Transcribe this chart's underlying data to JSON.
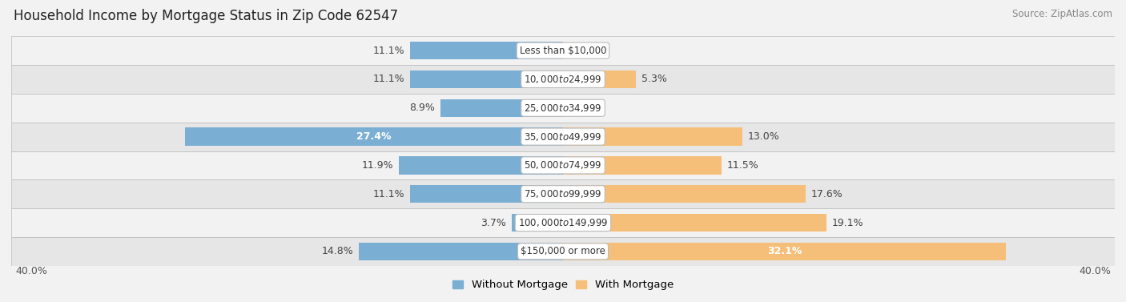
{
  "title": "Household Income by Mortgage Status in Zip Code 62547",
  "source": "Source: ZipAtlas.com",
  "categories": [
    "Less than $10,000",
    "$10,000 to $24,999",
    "$25,000 to $34,999",
    "$35,000 to $49,999",
    "$50,000 to $74,999",
    "$75,000 to $99,999",
    "$100,000 to $149,999",
    "$150,000 or more"
  ],
  "without_mortgage": [
    11.1,
    11.1,
    8.9,
    27.4,
    11.9,
    11.1,
    3.7,
    14.8
  ],
  "with_mortgage": [
    0.0,
    5.3,
    0.0,
    13.0,
    11.5,
    17.6,
    19.1,
    32.1
  ],
  "without_mortgage_color": "#7baed3",
  "with_mortgage_color": "#f5bf7a",
  "bg_light": "#f2f2f2",
  "bg_dark": "#e6e6e6",
  "row_line_color": "#cccccc",
  "axis_max": 40.0,
  "legend_without": "Without Mortgage",
  "legend_with": "With Mortgage",
  "title_fontsize": 12,
  "source_fontsize": 8.5,
  "bar_height": 0.62,
  "label_fontsize": 9,
  "category_fontsize": 8.5
}
